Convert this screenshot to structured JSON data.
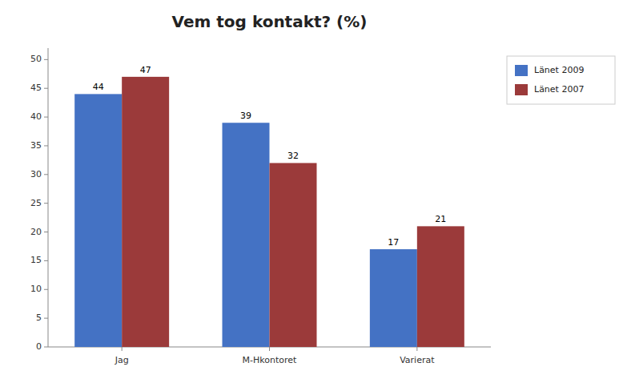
{
  "chart_data": {
    "type": "bar",
    "title": "Vem tog kontakt? (%)",
    "categories": [
      "Jag",
      "M-Hkontoret",
      "Varierat"
    ],
    "series": [
      {
        "name": "Länet 2009",
        "color": "#4472C4",
        "values": [
          44,
          39,
          17
        ]
      },
      {
        "name": "Länet 2007",
        "color": "#9B3A3A",
        "values": [
          47,
          32,
          21
        ]
      }
    ],
    "ylim": [
      0,
      52
    ],
    "yticks": [
      0,
      5,
      10,
      15,
      20,
      25,
      30,
      35,
      40,
      45,
      50
    ],
    "grid": false,
    "legend": "upper right",
    "data_labels": true
  }
}
